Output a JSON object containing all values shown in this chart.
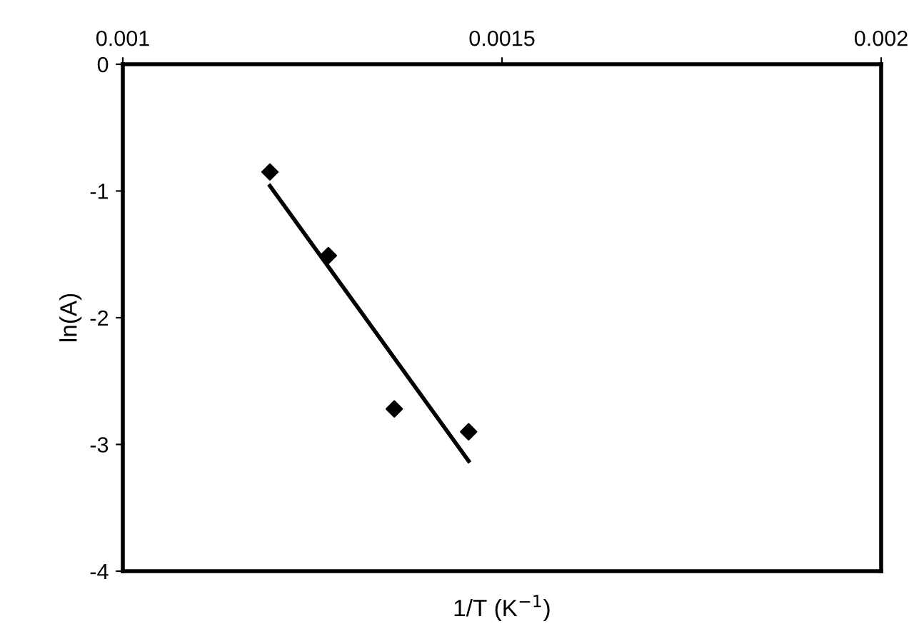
{
  "chart_data": {
    "type": "scatter",
    "xlabel": "1/T (K$^{−1}$)",
    "ylabel": "ln(A)",
    "xlim": [
      0.001,
      0.002
    ],
    "xticks": [
      0.001,
      0.0015,
      0.002
    ],
    "ylim": [
      -4,
      0
    ],
    "yticks": [
      0,
      -1,
      -2,
      -3,
      -4
    ],
    "grid": false,
    "legend": false,
    "series": [
      {
        "color": "#000000",
        "marker": "diamond",
        "x": [
          0.001194,
          0.001271,
          0.001358,
          0.001456
        ],
        "values": [
          -0.85,
          -1.51,
          -2.72,
          -2.9
        ]
      },
      {
        "type": "line",
        "color": "#000000",
        "marker": "none",
        "line_style": "solid",
        "x": [
          0.001194,
          0.001456
        ],
        "values": [
          -0.96,
          -3.13
        ]
      }
    ]
  }
}
